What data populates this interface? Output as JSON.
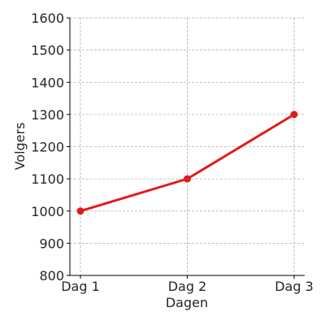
{
  "chart_data": {
    "type": "line",
    "title": "",
    "xlabel": "Dagen",
    "ylabel": "Volgers",
    "categories": [
      "Dag 1",
      "Dag 2",
      "Dag 3"
    ],
    "series": [
      {
        "values": [
          1000,
          1100,
          1300
        ],
        "color": "#e31a1c",
        "marker": "circle"
      }
    ],
    "ylim": [
      800,
      1600
    ],
    "yticks": [
      800,
      900,
      1000,
      1100,
      1200,
      1300,
      1400,
      1500,
      1600
    ],
    "grid": true,
    "legend": "none"
  }
}
